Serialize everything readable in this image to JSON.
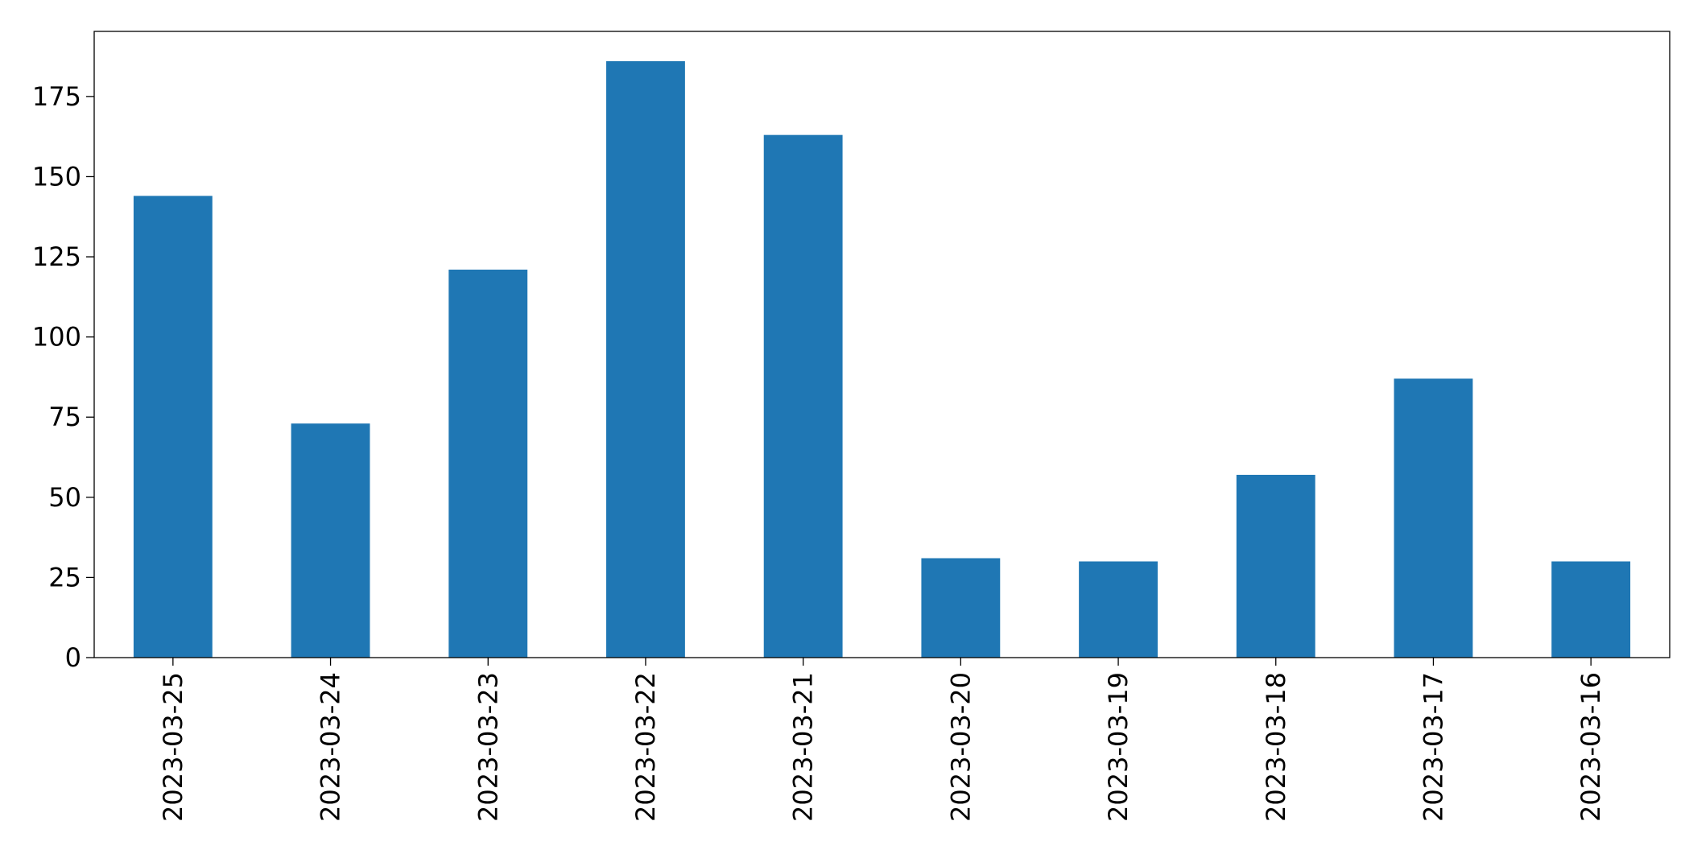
{
  "chart_data": {
    "type": "bar",
    "categories": [
      "2023-03-25",
      "2023-03-24",
      "2023-03-23",
      "2023-03-22",
      "2023-03-21",
      "2023-03-20",
      "2023-03-19",
      "2023-03-18",
      "2023-03-17",
      "2023-03-16"
    ],
    "values": [
      144,
      73,
      121,
      186,
      163,
      31,
      30,
      57,
      87,
      30
    ],
    "color": "#1f77b4",
    "ylim": [
      0,
      195.3
    ],
    "yticks": [
      0,
      25,
      50,
      75,
      100,
      125,
      150,
      175
    ],
    "grid": false
  }
}
